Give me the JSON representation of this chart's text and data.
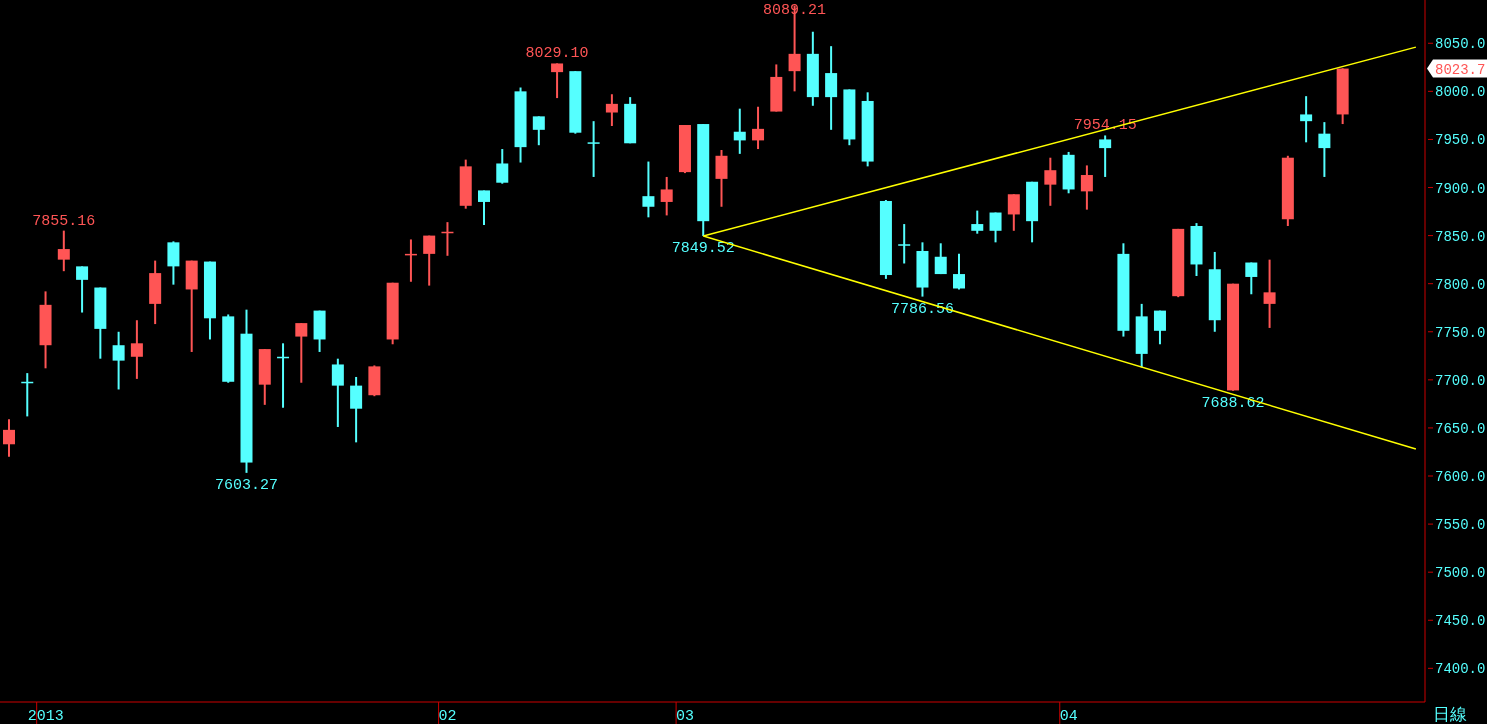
{
  "chart_data": {
    "type": "candlestick",
    "categories": [
      null,
      null,
      "2013",
      null,
      null,
      null,
      null,
      null,
      null,
      null,
      null,
      null,
      null,
      null,
      null,
      null,
      null,
      null,
      null,
      null,
      null,
      null,
      null,
      null,
      "02",
      null,
      null,
      null,
      null,
      null,
      null,
      null,
      null,
      null,
      null,
      null,
      null,
      "03",
      null,
      null,
      null,
      null,
      null,
      null,
      null,
      null,
      null,
      null,
      null,
      null,
      null,
      null,
      null,
      null,
      null,
      null,
      null,
      null,
      "04",
      null,
      null,
      null,
      null,
      null,
      null,
      null,
      null,
      null,
      null,
      null,
      null,
      null,
      null,
      null,
      null,
      null,
      null,
      null
    ],
    "ohlc": [
      [
        7633,
        7659,
        7620,
        7648
      ],
      [
        7698,
        7707,
        7662,
        7697
      ],
      [
        7736,
        7792,
        7712,
        7778
      ],
      [
        7825,
        7855.16,
        7813,
        7836
      ],
      [
        7818,
        7818,
        7770,
        7804
      ],
      [
        7796,
        7796,
        7722,
        7753
      ],
      [
        7736,
        7750,
        7690,
        7720
      ],
      [
        7724,
        7762,
        7701,
        7738
      ],
      [
        7779,
        7824,
        7758,
        7811
      ],
      [
        7843,
        7844,
        7799,
        7818
      ],
      [
        7794,
        7824,
        7729,
        7824
      ],
      [
        7823,
        7823,
        7742,
        7764
      ],
      [
        7766,
        7768,
        7697,
        7698
      ],
      [
        7748,
        7773,
        7603.27,
        7614
      ],
      [
        7695,
        7732,
        7674,
        7732
      ],
      [
        7724,
        7738,
        7671,
        7723
      ],
      [
        7745,
        7759,
        7697,
        7759
      ],
      [
        7772,
        7772,
        7729,
        7742
      ],
      [
        7716,
        7722,
        7651,
        7694
      ],
      [
        7694,
        7703,
        7635,
        7670
      ],
      [
        7684,
        7715,
        7683,
        7714
      ],
      [
        7742,
        7801,
        7737,
        7801
      ],
      [
        7830,
        7846,
        7802,
        7831
      ],
      [
        7831,
        7850,
        7798,
        7850
      ],
      [
        7853,
        7864,
        7829,
        7854
      ],
      [
        7881,
        7929,
        7878,
        7922
      ],
      [
        7897,
        7897,
        7861,
        7885
      ],
      [
        7925,
        7940,
        7904,
        7905
      ],
      [
        8000,
        8004,
        7926,
        7942
      ],
      [
        7974,
        7974,
        7944,
        7960
      ],
      [
        8020,
        8029.1,
        7993,
        8029
      ],
      [
        8021,
        8021,
        7956,
        7957
      ],
      [
        7947,
        7969,
        7911,
        7946
      ],
      [
        7978,
        7997,
        7964,
        7987
      ],
      [
        7987,
        7994,
        7946,
        7946
      ],
      [
        7891,
        7927,
        7869,
        7880
      ],
      [
        7885,
        7911,
        7871,
        7898
      ],
      [
        7916,
        7965,
        7915,
        7965
      ],
      [
        7966,
        7966,
        7849.52,
        7865
      ],
      [
        7909,
        7939,
        7880,
        7933
      ],
      [
        7958,
        7982,
        7935,
        7949
      ],
      [
        7949,
        7984,
        7940,
        7961
      ],
      [
        7979,
        8028,
        7979,
        8015
      ],
      [
        8021,
        8089.21,
        8000,
        8039
      ],
      [
        8039,
        8062,
        7985,
        7994
      ],
      [
        8019,
        8047,
        7960,
        7994
      ],
      [
        8002,
        8002,
        7944,
        7950
      ],
      [
        7990,
        7999,
        7922,
        7927
      ],
      [
        7886,
        7887,
        7805,
        7809
      ],
      [
        7841,
        7862,
        7821,
        7840
      ],
      [
        7834,
        7843,
        7786.56,
        7796
      ],
      [
        7828,
        7842,
        7810,
        7810
      ],
      [
        7810,
        7831,
        7794,
        7795
      ],
      [
        7862,
        7876,
        7852,
        7855
      ],
      [
        7874,
        7874,
        7843,
        7855
      ],
      [
        7872,
        7893,
        7855,
        7893
      ],
      [
        7906,
        7906,
        7843,
        7865
      ],
      [
        7903,
        7931,
        7881,
        7918
      ],
      [
        7934,
        7937,
        7894,
        7898
      ],
      [
        7896,
        7923,
        7877,
        7913
      ],
      [
        7950,
        7954.15,
        7911,
        7941
      ],
      [
        7831,
        7842,
        7745,
        7751
      ],
      [
        7766,
        7779,
        7713,
        7727
      ],
      [
        7772,
        7772,
        7737,
        7751
      ],
      [
        7787,
        7857,
        7786,
        7857
      ],
      [
        7860,
        7863,
        7808,
        7820
      ],
      [
        7815,
        7833,
        7750,
        7762
      ],
      [
        7689,
        7800,
        7688.62,
        7800
      ],
      [
        7822,
        7822,
        7789,
        7807
      ],
      [
        7779,
        7825,
        7754,
        7791
      ],
      [
        7867,
        7933,
        7860,
        7931
      ],
      [
        7976,
        7995,
        7947,
        7969
      ],
      [
        7956,
        7968,
        7911,
        7941
      ],
      [
        7976,
        8024,
        7966,
        8023.7
      ],
      null,
      null,
      null,
      null
    ],
    "value_labels": [
      null,
      null,
      null,
      "7855.16",
      null,
      null,
      null,
      null,
      null,
      null,
      null,
      null,
      null,
      "7603.27",
      null,
      null,
      null,
      null,
      null,
      null,
      null,
      null,
      null,
      null,
      null,
      null,
      null,
      null,
      null,
      null,
      "8029.10",
      null,
      null,
      null,
      null,
      null,
      null,
      null,
      "7849.52",
      null,
      null,
      null,
      null,
      "8089.21",
      null,
      null,
      null,
      null,
      null,
      null,
      "7786.56",
      null,
      null,
      null,
      null,
      null,
      null,
      null,
      null,
      null,
      "7954.15",
      null,
      null,
      null,
      null,
      null,
      null,
      "7688.62",
      null,
      null,
      null,
      null,
      null,
      null,
      null,
      null,
      null,
      null
    ],
    "colors": [
      "#ff5555",
      "#55ffff",
      "#ff5555",
      "#ff5555",
      "#55ffff",
      "#55ffff",
      "#55ffff",
      "#ff5555",
      "#ff5555",
      "#55ffff",
      "#ff5555",
      "#55ffff",
      "#55ffff",
      "#55ffff",
      "#ff5555",
      "#55ffff",
      "#ff5555",
      "#55ffff",
      "#55ffff",
      "#55ffff",
      "#ff5555",
      "#ff5555",
      "#ff5555",
      "#ff5555",
      "#ff5555",
      "#ff5555",
      "#55ffff",
      "#55ffff",
      "#55ffff",
      "#55ffff",
      "#ff5555",
      "#55ffff",
      "#55ffff",
      "#ff5555",
      "#55ffff",
      "#55ffff",
      "#ff5555",
      "#ff5555",
      "#55ffff",
      "#ff5555",
      "#55ffff",
      "#ff5555",
      "#ff5555",
      "#ff5555",
      "#55ffff",
      "#55ffff",
      "#55ffff",
      "#55ffff",
      "#55ffff",
      "#55ffff",
      "#55ffff",
      "#55ffff",
      "#55ffff",
      "#55ffff",
      "#55ffff",
      "#ff5555",
      "#55ffff",
      "#ff5555",
      "#55ffff",
      "#ff5555",
      "#55ffff",
      "#55ffff",
      "#55ffff",
      "#55ffff",
      "#ff5555",
      "#55ffff",
      "#55ffff",
      "#ff5555",
      "#55ffff",
      "#ff5555",
      "#ff5555",
      "#55ffff",
      "#55ffff",
      "#ff5555",
      null,
      null,
      null,
      null
    ],
    "series": [
      {
        "type": "line",
        "color": "#ffff00",
        "values": [
          null,
          null,
          null,
          null,
          null,
          null,
          null,
          null,
          null,
          null,
          null,
          null,
          null,
          null,
          null,
          null,
          null,
          null,
          null,
          null,
          null,
          null,
          null,
          null,
          null,
          null,
          null,
          null,
          null,
          null,
          null,
          null,
          null,
          null,
          null,
          null,
          null,
          null,
          7849.52,
          null,
          null,
          null,
          null,
          null,
          null,
          null,
          null,
          null,
          null,
          null,
          null,
          null,
          null,
          null,
          null,
          null,
          null,
          null,
          null,
          null,
          null,
          null,
          null,
          null,
          null,
          null,
          null,
          null,
          null,
          null,
          null,
          null,
          null,
          null,
          null,
          null,
          null,
          8046
        ]
      },
      {
        "type": "line",
        "color": "#ffff00",
        "values": [
          null,
          null,
          null,
          null,
          null,
          null,
          null,
          null,
          null,
          null,
          null,
          null,
          null,
          null,
          null,
          null,
          null,
          null,
          null,
          null,
          null,
          null,
          null,
          null,
          null,
          null,
          null,
          null,
          null,
          null,
          null,
          null,
          null,
          null,
          null,
          null,
          null,
          null,
          7849.52,
          null,
          null,
          null,
          null,
          null,
          null,
          null,
          null,
          null,
          null,
          null,
          null,
          null,
          null,
          null,
          null,
          null,
          null,
          null,
          null,
          null,
          null,
          null,
          null,
          null,
          null,
          null,
          null,
          null,
          null,
          null,
          null,
          null,
          null,
          null,
          null,
          null,
          null,
          7628
        ]
      }
    ],
    "ylim": [
      7365,
      8095
    ],
    "yticks": [
      {
        "value": 7400,
        "label": "7400.0"
      },
      {
        "value": 7450,
        "label": "7450.0"
      },
      {
        "value": 7500,
        "label": "7500.0"
      },
      {
        "value": 7550,
        "label": "7550.0"
      },
      {
        "value": 7600,
        "label": "7600.0"
      },
      {
        "value": 7650,
        "label": "7650.0"
      },
      {
        "value": 7700,
        "label": "7700.0"
      },
      {
        "value": 7750,
        "label": "7750.0"
      },
      {
        "value": 7800,
        "label": "7800.0"
      },
      {
        "value": 7850,
        "label": "7850.0"
      },
      {
        "value": 7900,
        "label": "7900.0"
      },
      {
        "value": 7950,
        "label": "7950.0"
      },
      {
        "value": 8000,
        "label": "8000.0"
      },
      {
        "value": 8023.7,
        "label": "8023.7"
      },
      {
        "value": 8050,
        "label": "8050.0"
      }
    ],
    "annotations": [
      "日線"
    ],
    "grid": false,
    "legend": false
  }
}
